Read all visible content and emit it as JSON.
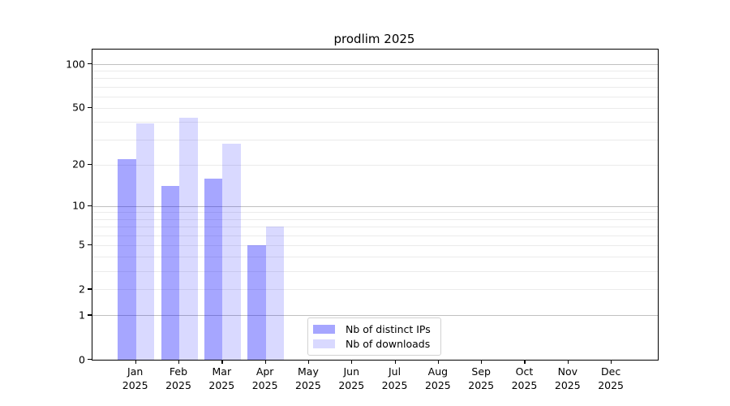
{
  "chart_data": {
    "type": "bar",
    "title": "prodlim 2025",
    "categories": [
      "Jan",
      "Feb",
      "Mar",
      "Apr",
      "May",
      "Jun",
      "Jul",
      "Aug",
      "Sep",
      "Oct",
      "Nov",
      "Dec"
    ],
    "x_year_suffix": "2025",
    "series": [
      {
        "name": "Nb of distinct IPs",
        "color": "rgba(0,0,255,0.35)",
        "values": [
          22,
          14,
          16,
          5,
          null,
          null,
          null,
          null,
          null,
          null,
          null,
          null
        ]
      },
      {
        "name": "Nb of downloads",
        "color": "rgba(0,0,255,0.15)",
        "values": [
          39,
          43,
          28,
          7,
          null,
          null,
          null,
          null,
          null,
          null,
          null,
          null
        ]
      }
    ],
    "yscale": "log10(value+1)",
    "yticks": [
      0,
      1,
      2,
      5,
      10,
      20,
      50,
      100
    ],
    "ylim": [
      0,
      126
    ],
    "xlabel": "",
    "ylabel": "",
    "grid": {
      "major_values": [
        1,
        10,
        100
      ],
      "minor_values": [
        2,
        3,
        4,
        5,
        6,
        7,
        8,
        9,
        20,
        30,
        40,
        50,
        60,
        70,
        80,
        90
      ],
      "major_color": "#c0c0c0",
      "minor_color": "#ebebeb"
    },
    "legend": {
      "position": "bottom-center",
      "entries": [
        "Nb of distinct IPs",
        "Nb of downloads"
      ]
    }
  },
  "colors": {
    "axis": "#000000",
    "text": "#000000",
    "legend_border": "#d2d2d2",
    "background": "#ffffff"
  }
}
